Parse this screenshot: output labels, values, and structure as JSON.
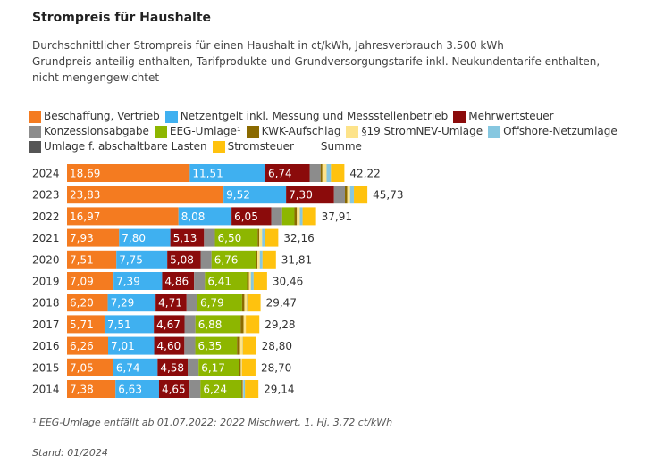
{
  "chart_data": {
    "type": "stacked-bar-horizontal",
    "title": "Strompreis für Haushalte",
    "subtitle": [
      "Durchschnittlicher Strompreis für einen Haushalt in ct/kWh, Jahresverbrauch 3.500 kWh",
      "Grundpreis anteilig enthalten, Tarifprodukte und Grundversorgungstarife inkl. Neukundentarife enthalten, nicht mengengewichtet"
    ],
    "categories": [
      "2024",
      "2023",
      "2022",
      "2021",
      "2020",
      "2019",
      "2018",
      "2017",
      "2016",
      "2015",
      "2014"
    ],
    "series": [
      {
        "name": "Beschaffung, Vertrieb",
        "color": "#f47b20",
        "values": [
          18.69,
          23.83,
          16.97,
          7.93,
          7.51,
          7.09,
          6.2,
          5.71,
          6.26,
          7.05,
          7.38
        ],
        "value_labels": [
          "18,69",
          "23,83",
          "16,97",
          "7,93",
          "7,51",
          "7,09",
          "6,20",
          "5,71",
          "6,26",
          "7,05",
          "7,38"
        ]
      },
      {
        "name": "Netzentgelt inkl. Messung und Messstellenbetrieb",
        "color": "#3fb0f0",
        "values": [
          11.51,
          9.52,
          8.08,
          7.8,
          7.75,
          7.39,
          7.29,
          7.51,
          7.01,
          6.74,
          6.63
        ],
        "value_labels": [
          "11,51",
          "9,52",
          "8,08",
          "7,80",
          "7,75",
          "7,39",
          "7,29",
          "7,51",
          "7,01",
          "6,74",
          "6,63"
        ]
      },
      {
        "name": "Mehrwertsteuer",
        "color": "#8b0b0b",
        "values": [
          6.74,
          7.3,
          6.05,
          5.13,
          5.08,
          4.86,
          4.71,
          4.67,
          4.6,
          4.58,
          4.65
        ],
        "value_labels": [
          "6,74",
          "7,30",
          "6,05",
          "5,13",
          "5,08",
          "4,86",
          "4,71",
          "4,67",
          "4,60",
          "4,58",
          "4,65"
        ]
      },
      {
        "name": "Konzessionsabgabe",
        "color": "#8c8c8c",
        "values": [
          1.66,
          1.66,
          1.66,
          1.66,
          1.66,
          1.66,
          1.66,
          1.66,
          1.66,
          1.66,
          1.66
        ]
      },
      {
        "name": "EEG-Umlage¹",
        "color": "#8db600",
        "values": [
          0,
          0,
          1.86,
          6.5,
          6.76,
          6.41,
          6.79,
          6.88,
          6.35,
          6.17,
          6.24
        ],
        "value_labels": [
          null,
          null,
          null,
          "6,50",
          "6,76",
          "6,41",
          "6,79",
          "6,88",
          "6,35",
          "6,17",
          "6,24"
        ]
      },
      {
        "name": "KWK-Aufschlag",
        "color": "#8a6a00",
        "values": [
          0.28,
          0.36,
          0.38,
          0.25,
          0.23,
          0.28,
          0.35,
          0.44,
          0.45,
          0.25,
          0.19
        ]
      },
      {
        "name": "§19 StromNEV-Umlage",
        "color": "#fde38a",
        "values": [
          0.64,
          0.42,
          0.44,
          0.43,
          0.36,
          0.31,
          0.37,
          0.35,
          0.38,
          0.19,
          0.09
        ]
      },
      {
        "name": "Offshore-Netzumlage",
        "color": "#86c7e0",
        "values": [
          0.66,
          0.59,
          0.42,
          0.4,
          0.4,
          0.4,
          0.04,
          0,
          0.04,
          0,
          0.25
        ]
      },
      {
        "name": "Umlage f. abschaltbare Lasten",
        "color": "#555555",
        "values": [
          0,
          0,
          0,
          0.01,
          0.01,
          0.01,
          0.01,
          0.01,
          0,
          0.01,
          0
        ]
      },
      {
        "name": "Stromsteuer",
        "color": "#ffc20e",
        "values": [
          2.05,
          2.05,
          2.05,
          2.05,
          2.05,
          2.05,
          2.05,
          2.05,
          2.05,
          2.05,
          2.05
        ]
      },
      {
        "name": "Summe",
        "color": null,
        "values": [
          42.22,
          45.73,
          37.91,
          32.16,
          31.81,
          30.46,
          29.47,
          29.28,
          28.8,
          28.7,
          29.14
        ],
        "value_labels": [
          "42,22",
          "45,73",
          "37,91",
          "32,16",
          "31,81",
          "30,46",
          "29,47",
          "29,28",
          "28,80",
          "28,70",
          "29,14"
        ]
      }
    ],
    "footnote": "¹ EEG-Umlage entfällt ab 01.07.2022; 2022 Mischwert, 1. Hj. 3,72 ct/kWh",
    "source": "Stand: 01/2024"
  }
}
